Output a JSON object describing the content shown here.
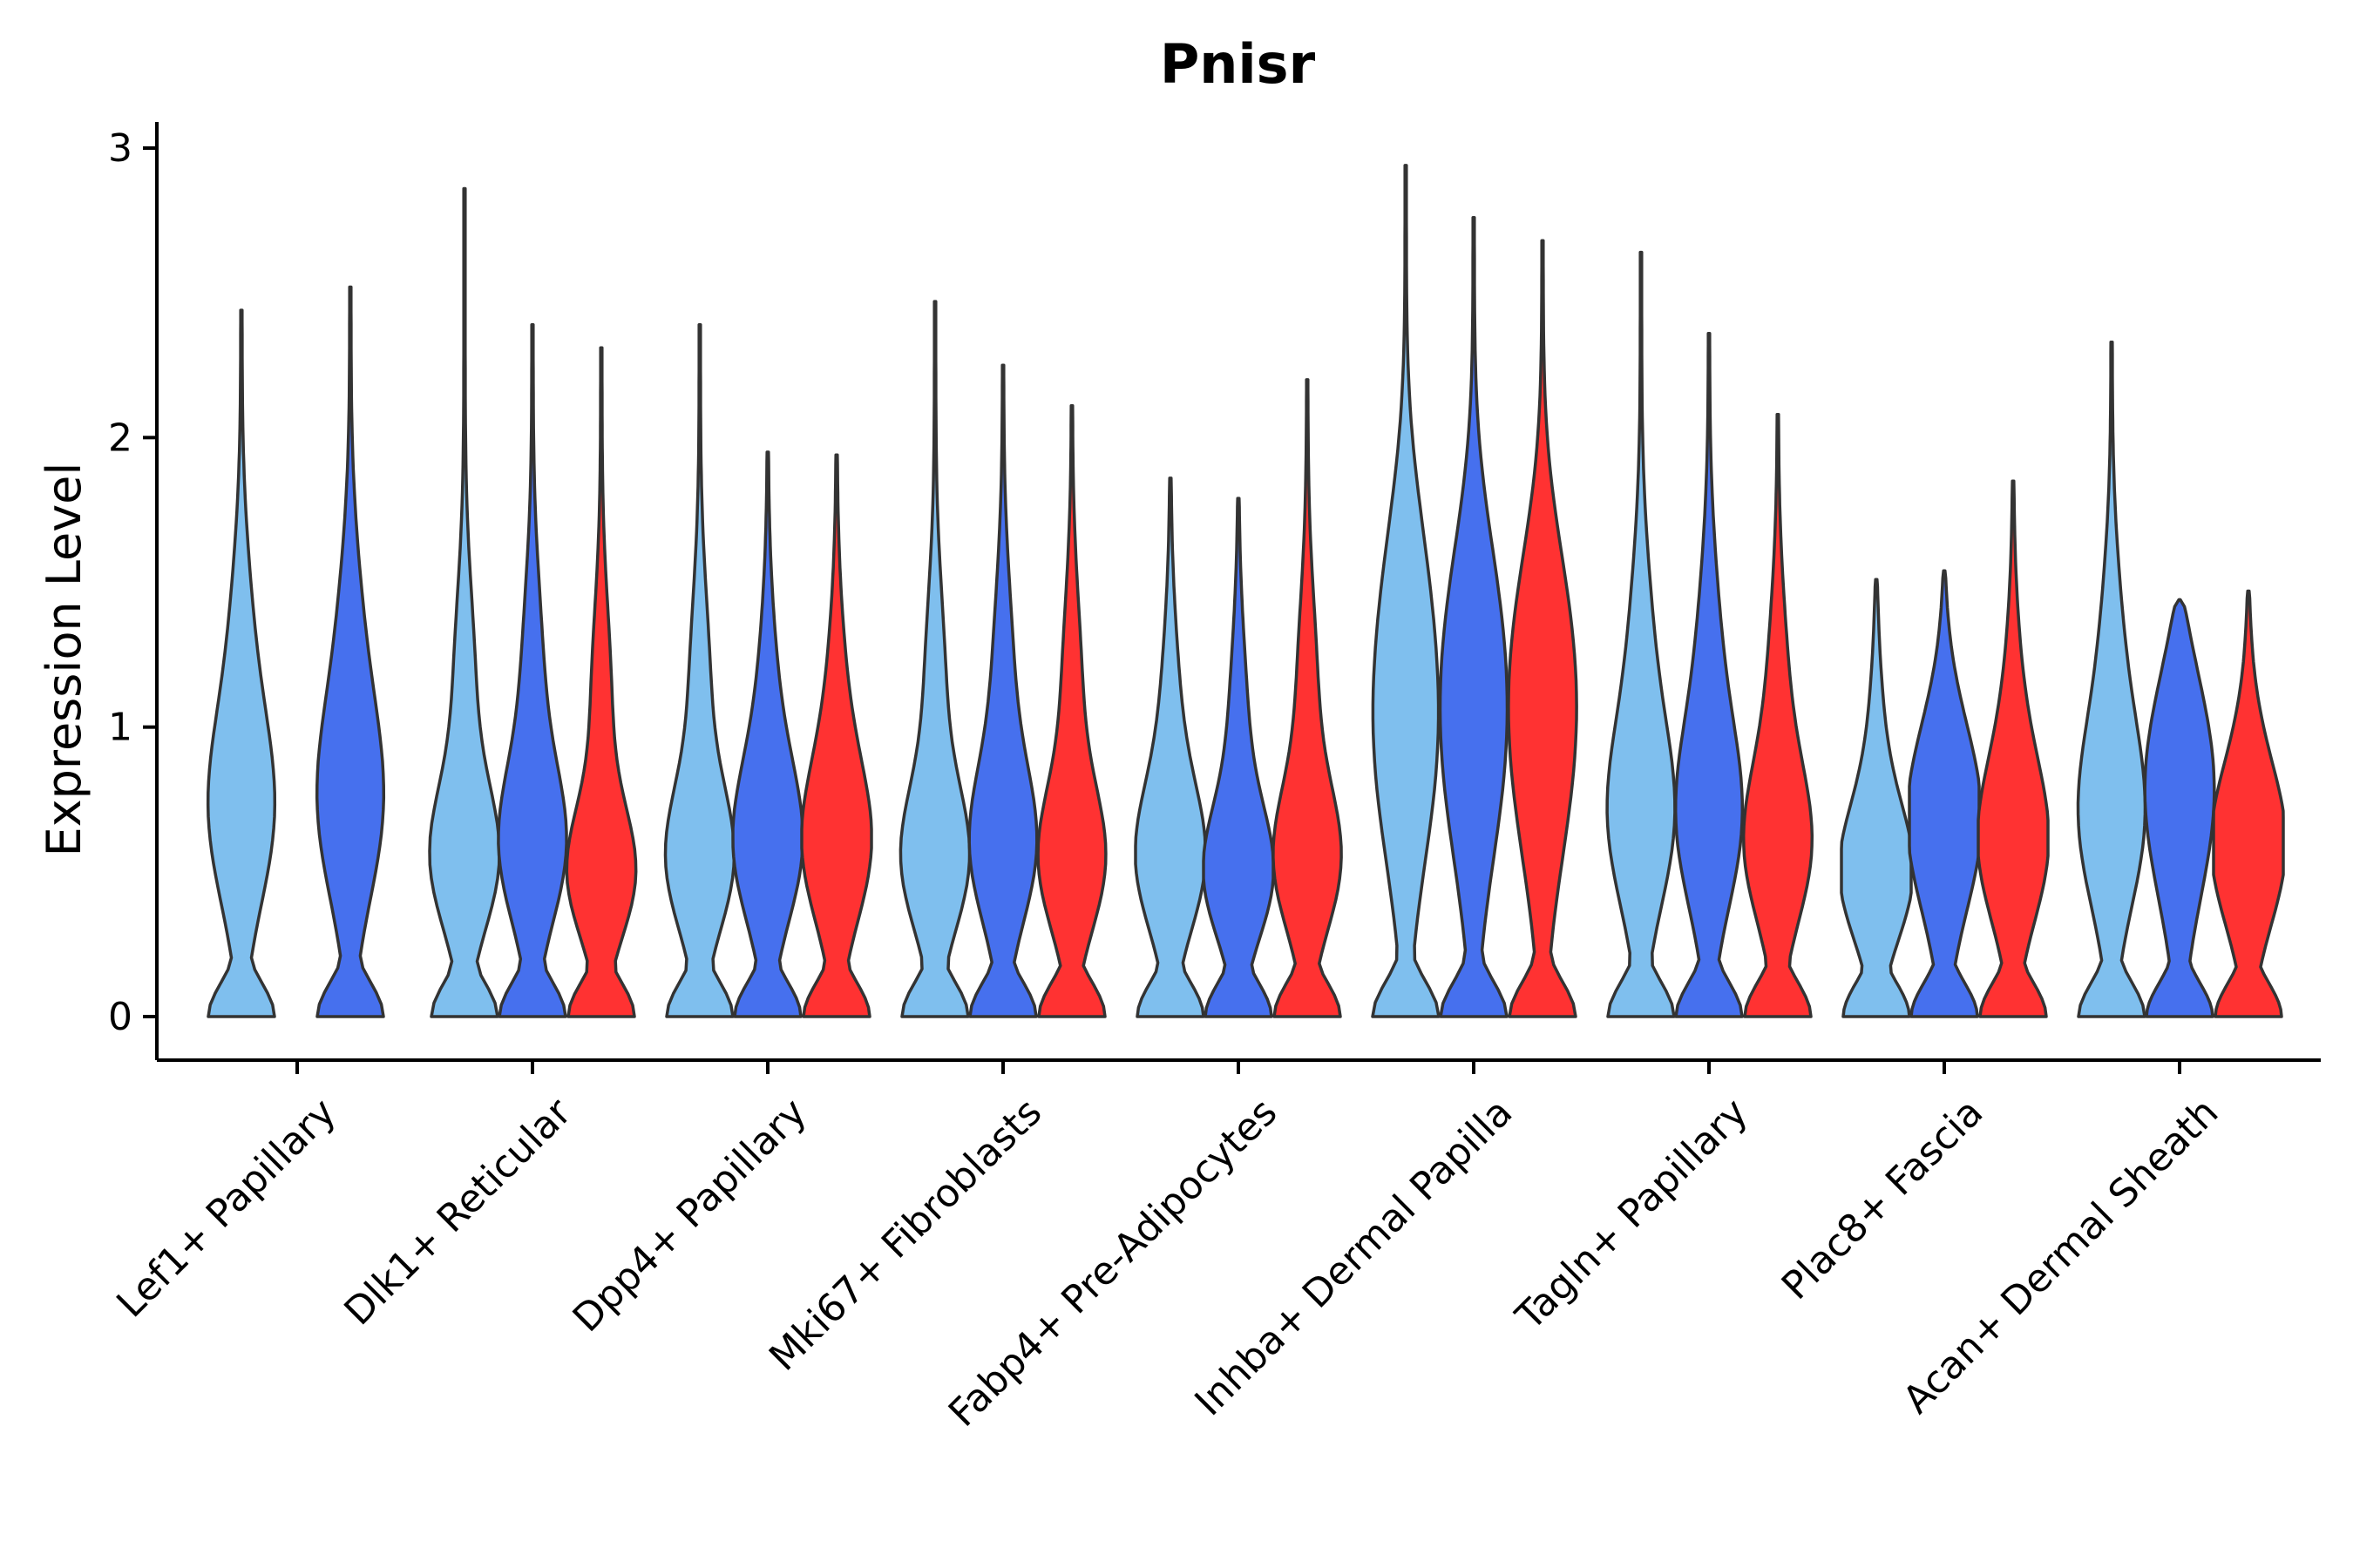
{
  "chart_data": {
    "type": "violin",
    "title": "Pnisr",
    "xlabel": "",
    "ylabel": "Expression Level",
    "ylim": [
      -0.15,
      3.1
    ],
    "yticks": [
      0,
      1,
      2,
      3
    ],
    "grid": false,
    "legend": "none",
    "colors": [
      "#7fbfee",
      "#4670ee",
      "#ff3232"
    ],
    "categories": [
      "Lef1+ Papillary",
      "Dlk1+ Reticular",
      "Dpp4+ Papillary",
      "Mki67+ Fibroblasts",
      "Fabp4+ Pre-Adipocytes",
      "Inhba+ Dermal Papilla",
      "Tagln+ Papillary",
      "Plac8+ Fascia",
      "Acan+ Dermal Sheath"
    ],
    "groups": [
      {
        "category": "Lef1+ Papillary",
        "violins": [
          {
            "color_index": 0,
            "max": 2.44,
            "mode": 0.72
          },
          {
            "color_index": 1,
            "max": 2.52,
            "mode": 0.75
          }
        ]
      },
      {
        "category": "Dlk1+ Reticular",
        "violins": [
          {
            "color_index": 0,
            "max": 2.86,
            "mode": 0.55
          },
          {
            "color_index": 1,
            "max": 2.39,
            "mode": 0.6
          },
          {
            "color_index": 2,
            "max": 2.31,
            "mode": 0.5
          }
        ]
      },
      {
        "category": "Dpp4+ Papillary",
        "violins": [
          {
            "color_index": 0,
            "max": 2.39,
            "mode": 0.55
          },
          {
            "color_index": 1,
            "max": 1.95,
            "mode": 0.6
          },
          {
            "color_index": 2,
            "max": 1.94,
            "mode": 0.6
          }
        ]
      },
      {
        "category": "Mki67+ Fibroblasts",
        "violins": [
          {
            "color_index": 0,
            "max": 2.47,
            "mode": 0.55
          },
          {
            "color_index": 1,
            "max": 2.25,
            "mode": 0.6
          },
          {
            "color_index": 2,
            "max": 2.11,
            "mode": 0.55
          }
        ]
      },
      {
        "category": "Fabp4+ Pre-Adipocytes",
        "violins": [
          {
            "color_index": 0,
            "max": 1.86,
            "mode": 0.55
          },
          {
            "color_index": 1,
            "max": 1.79,
            "mode": 0.5
          },
          {
            "color_index": 2,
            "max": 2.2,
            "mode": 0.55
          }
        ]
      },
      {
        "category": "Inhba+ Dermal Papilla",
        "violins": [
          {
            "color_index": 0,
            "max": 2.94,
            "mode": 1.0
          },
          {
            "color_index": 1,
            "max": 2.76,
            "mode": 1.0
          },
          {
            "color_index": 2,
            "max": 2.68,
            "mode": 1.0
          }
        ]
      },
      {
        "category": "Tagln+ Papillary",
        "violins": [
          {
            "color_index": 0,
            "max": 2.64,
            "mode": 0.7
          },
          {
            "color_index": 1,
            "max": 2.36,
            "mode": 0.7
          },
          {
            "color_index": 2,
            "max": 2.08,
            "mode": 0.6
          }
        ]
      },
      {
        "category": "Plac8+ Fascia",
        "violins": [
          {
            "color_index": 0,
            "max": 1.51,
            "mode": 0.5
          },
          {
            "color_index": 1,
            "max": 1.54,
            "mode": 0.7
          },
          {
            "color_index": 2,
            "max": 1.85,
            "mode": 0.6
          }
        ]
      },
      {
        "category": "Acan+ Dermal Sheath",
        "violins": [
          {
            "color_index": 0,
            "max": 2.33,
            "mode": 0.7
          },
          {
            "color_index": 1,
            "max": 1.44,
            "mode": 0.9
          },
          {
            "color_index": 2,
            "max": 1.47,
            "mode": 0.6
          }
        ]
      }
    ]
  }
}
